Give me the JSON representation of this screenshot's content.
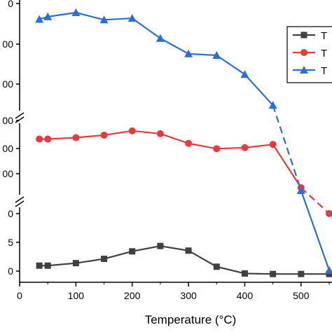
{
  "chart_data": {
    "type": "line",
    "xlabel": "Temperature (°C)",
    "x_ticks": [
      0,
      100,
      200,
      300,
      400,
      500
    ],
    "x_tick_labels": [
      "0",
      "100",
      "200",
      "300",
      "400",
      "500"
    ],
    "xlim": [
      0,
      550
    ],
    "y_axis_breaks": 2,
    "y_tick_labels": {
      "top_segment": [
        "00",
        "00"
      ],
      "middle_segment": [
        "00",
        "00",
        "00",
        "00"
      ],
      "bottom_segment": [
        "0",
        "5",
        "0"
      ]
    },
    "legend": {
      "placement": "right",
      "entries": [
        "T",
        "T",
        "T"
      ]
    },
    "series": [
      {
        "marker": "square",
        "color": "#404040",
        "x": [
          35,
          50,
          100,
          150,
          200,
          250,
          300,
          350,
          400,
          450,
          500,
          550
        ],
        "y_fraction": [
          0.125,
          0.125,
          0.16,
          0.22,
          0.325,
          0.4,
          0.335,
          0.11,
          0.015,
          0.008,
          0.008,
          0.008
        ],
        "segment": "bottom"
      },
      {
        "marker": "circle",
        "color": "#e83a3a",
        "x": [
          35,
          50,
          100,
          150,
          200,
          250,
          300,
          350,
          400,
          450,
          500,
          550
        ],
        "y_fraction": [
          0.72,
          0.72,
          0.74,
          0.775,
          0.835,
          0.795,
          0.66,
          0.585,
          0.6,
          0.645,
          0.42,
          0.265
        ],
        "segment": "middle"
      },
      {
        "marker": "triangle",
        "color": "#2a6fd6",
        "x": [
          35,
          50,
          100,
          150,
          200,
          250,
          300,
          350,
          400,
          450,
          500,
          550
        ],
        "y_fraction": [
          0.935,
          0.96,
          1.0,
          0.93,
          0.945,
          0.75,
          0.6,
          0.585,
          0.4,
          0.1,
          0.4,
          0.02
        ],
        "segment": "top"
      }
    ]
  }
}
